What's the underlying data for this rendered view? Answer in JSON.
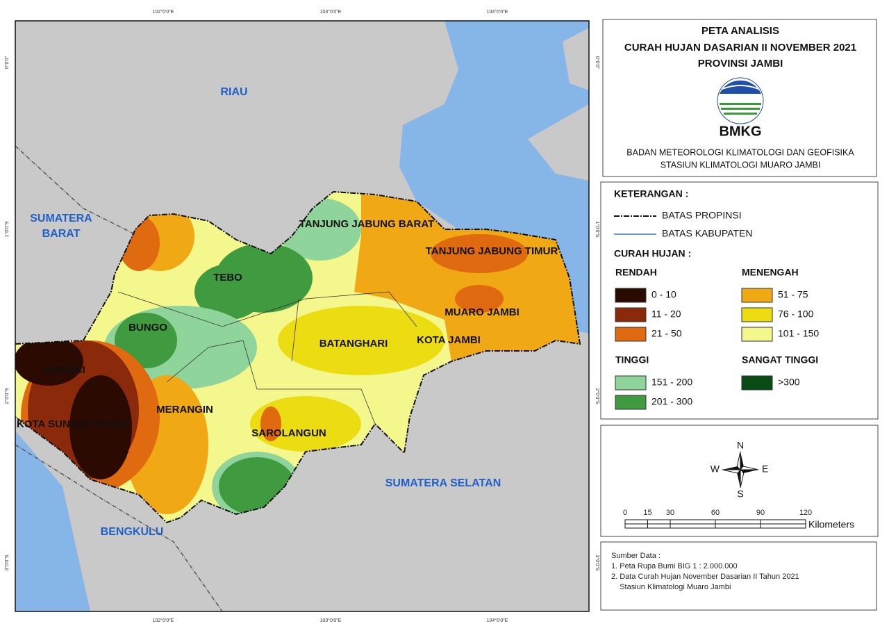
{
  "map": {
    "grid_labels": {
      "top": [
        "102°0'0\"E",
        "103°0'0\"E",
        "104°0'0\"E"
      ],
      "bottom": [
        "102°0'0\"E",
        "103°0'0\"E",
        "104°0'0\"E"
      ],
      "left": [
        "0°0'0\"",
        "1°0'0\"S",
        "2°0'0\"S",
        "3°0'0\"S"
      ],
      "right": [
        "0°0'0\"",
        "1°0'0\"S",
        "2°0'0\"S",
        "3°0'0\"S"
      ]
    },
    "regions": [
      "TANJUNG JABUNG BARAT",
      "TANJUNG JABUNG TIMUR",
      "TEBO",
      "BUNGO",
      "MUARO JAMBI",
      "BATANGHARI",
      "KOTA JAMBI",
      "KERINCI",
      "KOTA SUNGAI PENUH",
      "MERANGIN",
      "SAROLANGUN"
    ],
    "neighbors": [
      "RIAU",
      "SUMATERA",
      "BARAT",
      "SUMATERA SELATAN",
      "BENGKULU"
    ]
  },
  "header": {
    "title_lines": [
      "PETA ANALISIS",
      "CURAH HUJAN DASARIAN II NOVEMBER  2021",
      "PROVINSI JAMBI"
    ],
    "agency": "BMKG",
    "org_lines": [
      "BADAN METEOROLOGI KLIMATOLOGI DAN GEOFISIKA",
      "STASIUN KLIMATOLOGI MUARO JAMBI"
    ]
  },
  "legend": {
    "title": "KETERANGAN :",
    "boundaries": [
      "BATAS PROPINSI",
      "BATAS KABUPATEN"
    ],
    "rainfall_title": "CURAH HUJAN :",
    "groups": [
      {
        "name": "RENDAH",
        "classes": [
          {
            "label": "0 - 10",
            "color": "#2b0a02"
          },
          {
            "label": "11 - 20",
            "color": "#8b2a0a"
          },
          {
            "label": "21 - 50",
            "color": "#e06a10"
          }
        ]
      },
      {
        "name": "MENENGAH",
        "classes": [
          {
            "label": "51 - 75",
            "color": "#f0a814"
          },
          {
            "label": "76 - 100",
            "color": "#ecdc12"
          },
          {
            "label": "101 - 150",
            "color": "#f4f88c"
          }
        ]
      },
      {
        "name": "TINGGI",
        "classes": [
          {
            "label": "151 - 200",
            "color": "#8fd49a"
          },
          {
            "label": "201 - 300",
            "color": "#3f9a40"
          }
        ]
      },
      {
        "name": "SANGAT TINGGI",
        "classes": [
          {
            "label": ">300",
            "color": "#0a4a14"
          }
        ]
      }
    ]
  },
  "compass": {
    "n": "N",
    "e": "E",
    "s": "S",
    "w": "W"
  },
  "scale": {
    "ticks": [
      0,
      15,
      30,
      60,
      90,
      120
    ],
    "unit": "Kilometers"
  },
  "source": {
    "title": "Sumber Data :",
    "lines": [
      "1. Peta Rupa Bumi BIG 1 : 2.000.000",
      "2. Data Curah Hujan November Dasarian II Tahun 2021",
      "    Stasiun Klimatologi Muaro Jambi"
    ]
  }
}
